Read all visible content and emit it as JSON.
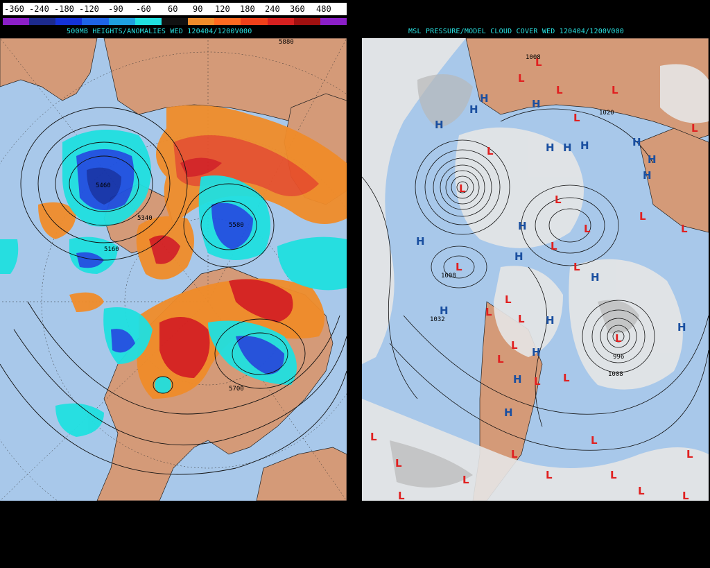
{
  "legend": {
    "labels": [
      "-360",
      "-240",
      "-180",
      "-120",
      "-90",
      "-60",
      "60",
      "90",
      "120",
      "180",
      "240",
      "360",
      "480"
    ],
    "colors": [
      "#8b1fc8",
      "#1c2a8c",
      "#1432d8",
      "#1e64e6",
      "#1ea0e0",
      "#20e0e0",
      "#111111",
      "#f08c2a",
      "#ff6a20",
      "#f0401a",
      "#d62020",
      "#a01010",
      "#8b1fc8"
    ]
  },
  "left_panel": {
    "title": "500MB HEIGHTS/ANOMALIES WED 120404/1200V000",
    "contour_labels": [
      "5880",
      "5460",
      "5340",
      "5580",
      "5700",
      "5160"
    ],
    "colors": {
      "land": "#d49a78",
      "ocean": "#a8c8ea",
      "pos_anom": "#e8502a",
      "neg_anom": "#1e50e0"
    }
  },
  "right_panel": {
    "title": "MSL PRESSURE/MODEL CLOUD COVER WED 120404/1200V000",
    "pressure_labels": [
      "1008",
      "1032",
      "1020",
      "1008",
      "1008",
      "996"
    ],
    "high_symbol": "H",
    "low_symbol": "L",
    "colors": {
      "high": "#1a4fa0",
      "low": "#e02020",
      "cloud": "#e8e8e8"
    }
  }
}
